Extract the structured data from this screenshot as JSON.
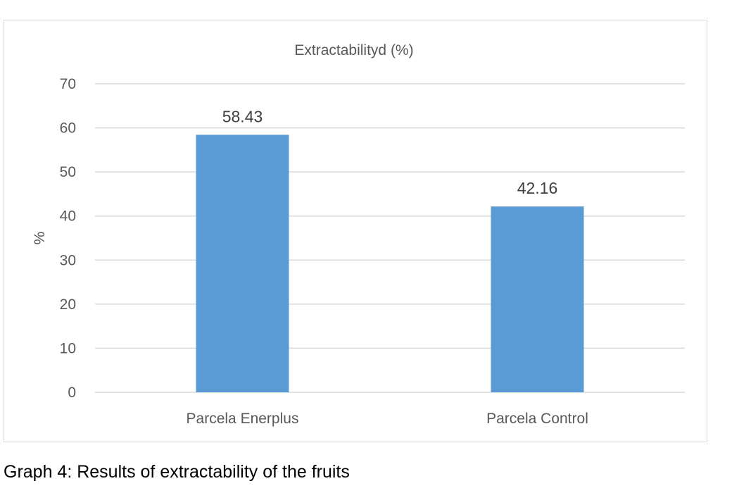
{
  "chart_data": {
    "type": "bar",
    "title": "Extractabilityd (%)",
    "xlabel": "",
    "ylabel": "%",
    "categories": [
      "Parcela Enerplus",
      "Parcela Control"
    ],
    "values": [
      58.43,
      42.16
    ],
    "data_labels": [
      "58.43",
      "42.16"
    ],
    "ylim": [
      0,
      70
    ],
    "yticks": [
      0,
      10,
      20,
      30,
      40,
      50,
      60,
      70
    ],
    "grid": true,
    "legend": "none",
    "bar_color": "#5b9bd5",
    "grid_color": "#d9d9d9",
    "text_color": "#595959"
  },
  "caption": "Graph 4: Results of extractability of the fruits"
}
